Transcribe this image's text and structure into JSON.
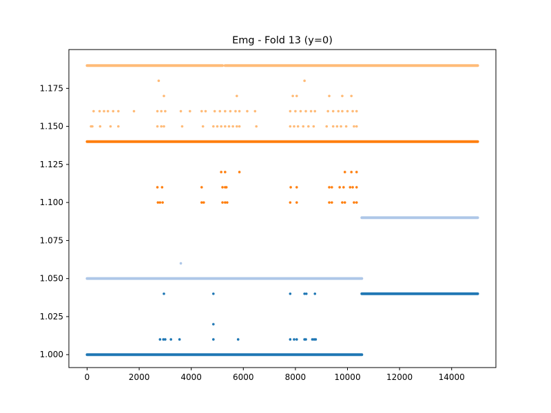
{
  "chart_data": {
    "type": "scatter",
    "title": "Emg - Fold 13 (y=0)",
    "xlabel": "",
    "ylabel": "",
    "xlim": [
      -700,
      15700
    ],
    "ylim": [
      0.9915,
      1.2005
    ],
    "xticks": [
      0,
      2000,
      4000,
      6000,
      8000,
      10000,
      12000,
      14000
    ],
    "xtick_labels": [
      "0",
      "2000",
      "4000",
      "6000",
      "8000",
      "10000",
      "12000",
      "14000"
    ],
    "yticks": [
      1.0,
      1.025,
      1.05,
      1.075,
      1.1,
      1.125,
      1.15,
      1.175
    ],
    "ytick_labels": [
      "1.000",
      "1.025",
      "1.050",
      "1.075",
      "1.100",
      "1.125",
      "1.150",
      "1.175"
    ],
    "grid": false,
    "legend": "none",
    "series": [
      {
        "color": "#1f77b4",
        "bands": [
          {
            "y": 1.0,
            "x": [
              0,
              10550
            ]
          },
          {
            "y": 1.04,
            "x": [
              10550,
              15000
            ]
          }
        ],
        "points": [
          {
            "x": 2800,
            "y": 1.01
          },
          {
            "x": 2930,
            "y": 1.01
          },
          {
            "x": 3000,
            "y": 1.01
          },
          {
            "x": 3220,
            "y": 1.01
          },
          {
            "x": 3550,
            "y": 1.01
          },
          {
            "x": 4850,
            "y": 1.01
          },
          {
            "x": 5800,
            "y": 1.01
          },
          {
            "x": 7800,
            "y": 1.01
          },
          {
            "x": 7950,
            "y": 1.01
          },
          {
            "x": 8050,
            "y": 1.01
          },
          {
            "x": 8350,
            "y": 1.01
          },
          {
            "x": 8400,
            "y": 1.01
          },
          {
            "x": 8650,
            "y": 1.01
          },
          {
            "x": 8720,
            "y": 1.01
          },
          {
            "x": 8780,
            "y": 1.01
          },
          {
            "x": 4850,
            "y": 1.02
          },
          {
            "x": 2950,
            "y": 1.04
          },
          {
            "x": 4850,
            "y": 1.04
          },
          {
            "x": 7800,
            "y": 1.04
          },
          {
            "x": 8350,
            "y": 1.04
          },
          {
            "x": 8420,
            "y": 1.04
          },
          {
            "x": 8750,
            "y": 1.04
          }
        ]
      },
      {
        "color": "#aec7e8",
        "bands": [
          {
            "y": 1.05,
            "x": [
              0,
              10550
            ]
          },
          {
            "y": 1.09,
            "x": [
              10550,
              15000
            ]
          }
        ],
        "points": [
          {
            "x": 3600,
            "y": 1.06
          }
        ]
      },
      {
        "color": "#ff7f0e",
        "bands": [
          {
            "y": 1.14,
            "x": [
              0,
              15000
            ]
          }
        ],
        "points": [
          {
            "x": 2720,
            "y": 1.1
          },
          {
            "x": 2800,
            "y": 1.1
          },
          {
            "x": 2900,
            "y": 1.1
          },
          {
            "x": 4400,
            "y": 1.1
          },
          {
            "x": 4480,
            "y": 1.1
          },
          {
            "x": 5200,
            "y": 1.1
          },
          {
            "x": 5300,
            "y": 1.1
          },
          {
            "x": 5380,
            "y": 1.1
          },
          {
            "x": 7800,
            "y": 1.1
          },
          {
            "x": 8050,
            "y": 1.1
          },
          {
            "x": 9300,
            "y": 1.1
          },
          {
            "x": 9400,
            "y": 1.1
          },
          {
            "x": 9800,
            "y": 1.1
          },
          {
            "x": 9900,
            "y": 1.1
          },
          {
            "x": 10250,
            "y": 1.1
          },
          {
            "x": 10350,
            "y": 1.1
          },
          {
            "x": 2700,
            "y": 1.11
          },
          {
            "x": 2880,
            "y": 1.11
          },
          {
            "x": 4400,
            "y": 1.11
          },
          {
            "x": 5200,
            "y": 1.11
          },
          {
            "x": 5300,
            "y": 1.11
          },
          {
            "x": 5350,
            "y": 1.11
          },
          {
            "x": 7820,
            "y": 1.11
          },
          {
            "x": 8050,
            "y": 1.11
          },
          {
            "x": 9300,
            "y": 1.11
          },
          {
            "x": 9400,
            "y": 1.11
          },
          {
            "x": 9700,
            "y": 1.11
          },
          {
            "x": 9850,
            "y": 1.11
          },
          {
            "x": 10100,
            "y": 1.11
          },
          {
            "x": 10200,
            "y": 1.11
          },
          {
            "x": 10350,
            "y": 1.11
          },
          {
            "x": 5150,
            "y": 1.12
          },
          {
            "x": 5300,
            "y": 1.12
          },
          {
            "x": 5850,
            "y": 1.12
          },
          {
            "x": 9900,
            "y": 1.12
          },
          {
            "x": 10150,
            "y": 1.12
          },
          {
            "x": 10350,
            "y": 1.12
          }
        ]
      },
      {
        "color": "#ffbb78",
        "bands": [
          {
            "y": 1.19,
            "x": [
              0,
              5200
            ]
          },
          {
            "y": 1.19,
            "x": [
              5300,
              15000
            ]
          }
        ],
        "points": [
          {
            "x": 150,
            "y": 1.15
          },
          {
            "x": 200,
            "y": 1.15
          },
          {
            "x": 500,
            "y": 1.15
          },
          {
            "x": 900,
            "y": 1.15
          },
          {
            "x": 1200,
            "y": 1.15
          },
          {
            "x": 2700,
            "y": 1.15
          },
          {
            "x": 2850,
            "y": 1.15
          },
          {
            "x": 2950,
            "y": 1.15
          },
          {
            "x": 3650,
            "y": 1.15
          },
          {
            "x": 4450,
            "y": 1.15
          },
          {
            "x": 4850,
            "y": 1.15
          },
          {
            "x": 5000,
            "y": 1.15
          },
          {
            "x": 5150,
            "y": 1.15
          },
          {
            "x": 5300,
            "y": 1.15
          },
          {
            "x": 5450,
            "y": 1.15
          },
          {
            "x": 5600,
            "y": 1.15
          },
          {
            "x": 5750,
            "y": 1.15
          },
          {
            "x": 5850,
            "y": 1.15
          },
          {
            "x": 6500,
            "y": 1.15
          },
          {
            "x": 7800,
            "y": 1.15
          },
          {
            "x": 7950,
            "y": 1.15
          },
          {
            "x": 8100,
            "y": 1.15
          },
          {
            "x": 8300,
            "y": 1.15
          },
          {
            "x": 8500,
            "y": 1.15
          },
          {
            "x": 8700,
            "y": 1.15
          },
          {
            "x": 9200,
            "y": 1.15
          },
          {
            "x": 9450,
            "y": 1.15
          },
          {
            "x": 9600,
            "y": 1.15
          },
          {
            "x": 9750,
            "y": 1.15
          },
          {
            "x": 9950,
            "y": 1.15
          },
          {
            "x": 10250,
            "y": 1.15
          },
          {
            "x": 10350,
            "y": 1.15
          },
          {
            "x": 250,
            "y": 1.16
          },
          {
            "x": 480,
            "y": 1.16
          },
          {
            "x": 650,
            "y": 1.16
          },
          {
            "x": 800,
            "y": 1.16
          },
          {
            "x": 1000,
            "y": 1.16
          },
          {
            "x": 1200,
            "y": 1.16
          },
          {
            "x": 1800,
            "y": 1.16
          },
          {
            "x": 2700,
            "y": 1.16
          },
          {
            "x": 2850,
            "y": 1.16
          },
          {
            "x": 3000,
            "y": 1.16
          },
          {
            "x": 3600,
            "y": 1.16
          },
          {
            "x": 3950,
            "y": 1.16
          },
          {
            "x": 4400,
            "y": 1.16
          },
          {
            "x": 4550,
            "y": 1.16
          },
          {
            "x": 4900,
            "y": 1.16
          },
          {
            "x": 5100,
            "y": 1.16
          },
          {
            "x": 5300,
            "y": 1.16
          },
          {
            "x": 5500,
            "y": 1.16
          },
          {
            "x": 5700,
            "y": 1.16
          },
          {
            "x": 5850,
            "y": 1.16
          },
          {
            "x": 6150,
            "y": 1.16
          },
          {
            "x": 6450,
            "y": 1.16
          },
          {
            "x": 7800,
            "y": 1.16
          },
          {
            "x": 8000,
            "y": 1.16
          },
          {
            "x": 8200,
            "y": 1.16
          },
          {
            "x": 8400,
            "y": 1.16
          },
          {
            "x": 8600,
            "y": 1.16
          },
          {
            "x": 8750,
            "y": 1.16
          },
          {
            "x": 9250,
            "y": 1.16
          },
          {
            "x": 9450,
            "y": 1.16
          },
          {
            "x": 9650,
            "y": 1.16
          },
          {
            "x": 9800,
            "y": 1.16
          },
          {
            "x": 10000,
            "y": 1.16
          },
          {
            "x": 10200,
            "y": 1.16
          },
          {
            "x": 10350,
            "y": 1.16
          },
          {
            "x": 2950,
            "y": 1.17
          },
          {
            "x": 5750,
            "y": 1.17
          },
          {
            "x": 7900,
            "y": 1.17
          },
          {
            "x": 8050,
            "y": 1.17
          },
          {
            "x": 9300,
            "y": 1.17
          },
          {
            "x": 9800,
            "y": 1.17
          },
          {
            "x": 10150,
            "y": 1.17
          },
          {
            "x": 2750,
            "y": 1.18
          },
          {
            "x": 8350,
            "y": 1.18
          }
        ]
      }
    ]
  }
}
